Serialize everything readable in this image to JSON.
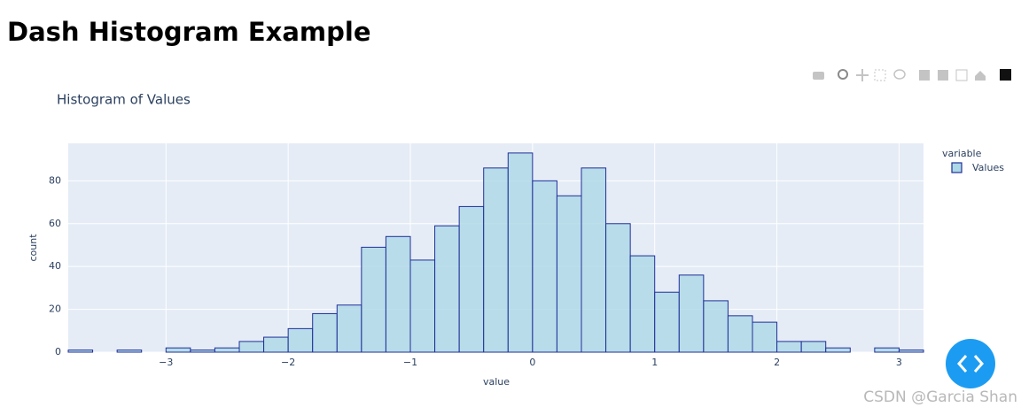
{
  "header": {
    "title": "Dash Histogram Example"
  },
  "chart_data": {
    "type": "histogram",
    "title": "Histogram of Values",
    "x_label": "value",
    "y_label": "count",
    "legend_title": "variable",
    "legend": "right",
    "grid": true,
    "series": [
      {
        "name": "Values",
        "color": "#add8e6",
        "edge_color": "#1f2f9a",
        "bins": [
          -3.8,
          -3.6,
          -3.4,
          -3.2,
          -3.0,
          -2.8,
          -2.6,
          -2.4,
          -2.2,
          -2.0,
          -1.8,
          -1.6,
          -1.4,
          -1.2,
          -1.0,
          -0.8,
          -0.6,
          -0.4,
          -0.2,
          0,
          0.2,
          0.4,
          0.6,
          0.8,
          1.0,
          1.2,
          1.4,
          1.6,
          1.8,
          2.0,
          2.2,
          2.4,
          2.6,
          2.8,
          3.0,
          3.2
        ],
        "values": [
          1,
          0,
          1,
          0,
          2,
          1,
          2,
          5,
          7,
          11,
          18,
          22,
          49,
          54,
          43,
          59,
          68,
          86,
          93,
          80,
          73,
          86,
          60,
          45,
          28,
          36,
          24,
          17,
          14,
          5,
          5,
          2,
          0,
          2,
          1
        ]
      }
    ],
    "xlim": [
      -3.8,
      3.2
    ],
    "xticks": [
      {
        "value": -3,
        "label": "−3"
      },
      {
        "value": -2,
        "label": "−2"
      },
      {
        "value": -1,
        "label": "−1"
      },
      0,
      1,
      2,
      3
    ],
    "ylim": [
      0,
      97.5
    ],
    "yticks": [
      0,
      20,
      40,
      60,
      80
    ]
  },
  "watermark": "CSDN @Garcia Shan"
}
